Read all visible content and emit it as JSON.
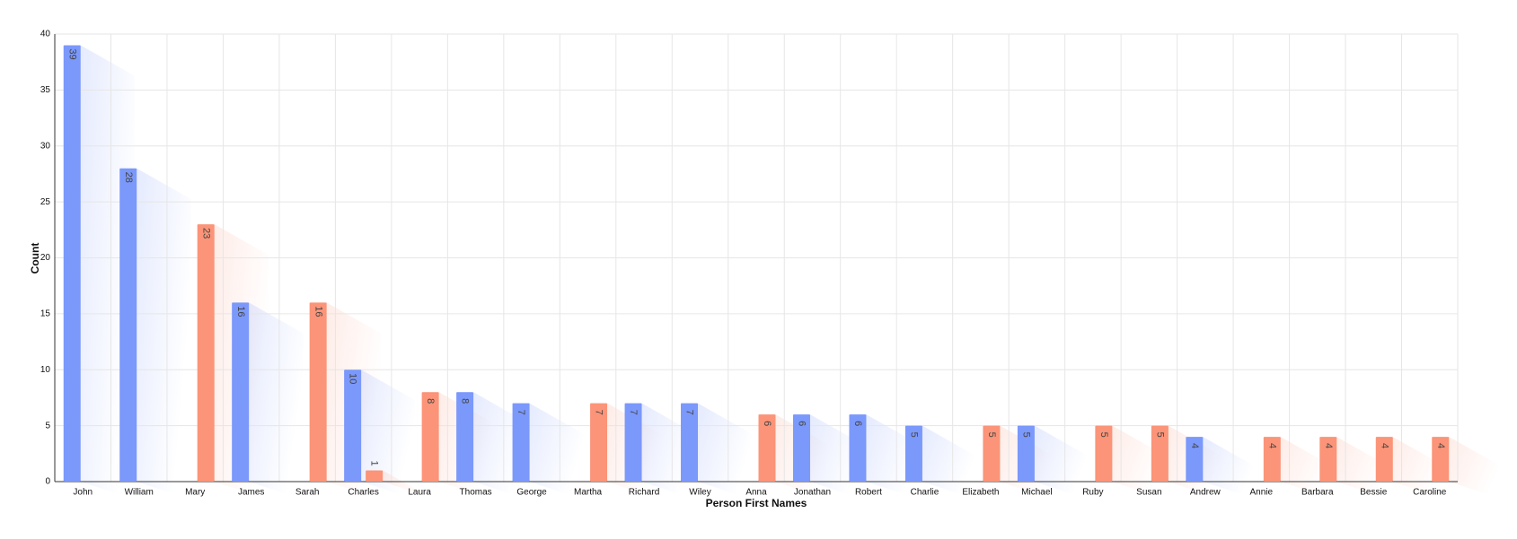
{
  "chart_data": {
    "type": "bar",
    "x_label": "Person First Names",
    "y_label": "Count",
    "categories": [
      "John",
      "William",
      "Mary",
      "James",
      "Sarah",
      "Charles",
      "Laura",
      "Thomas",
      "George",
      "Martha",
      "Richard",
      "Wiley",
      "Anna",
      "Jonathan",
      "Robert",
      "Charlie",
      "Elizabeth",
      "Michael",
      "Ruby",
      "Susan",
      "Andrew",
      "Annie",
      "Barbara",
      "Bessie",
      "Caroline"
    ],
    "series": [
      {
        "color": "#7b98fb",
        "values": [
          39,
          28,
          null,
          16,
          null,
          10,
          null,
          8,
          7,
          null,
          7,
          7,
          null,
          6,
          6,
          5,
          null,
          5,
          null,
          null,
          4,
          null,
          null,
          null,
          null
        ]
      },
      {
        "color": "#fb9478",
        "values": [
          null,
          null,
          23,
          null,
          16,
          1,
          8,
          null,
          null,
          7,
          null,
          null,
          6,
          null,
          null,
          null,
          5,
          null,
          5,
          5,
          null,
          4,
          4,
          4,
          4
        ]
      }
    ],
    "ylim": [
      0,
      40
    ],
    "yticks": [
      0,
      5,
      10,
      15,
      20,
      25,
      30,
      35,
      40
    ],
    "grid": true
  }
}
